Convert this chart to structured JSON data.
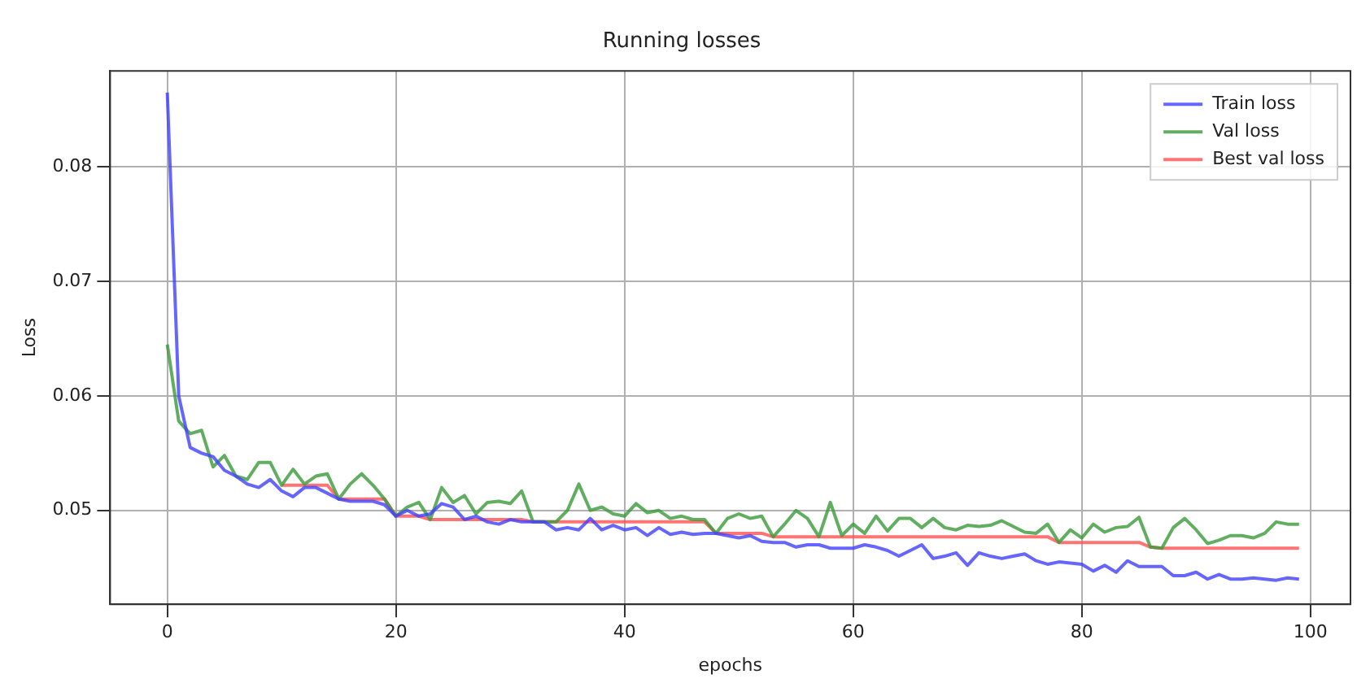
{
  "chart_data": {
    "type": "line",
    "title": "Running losses",
    "xlabel": "epochs",
    "ylabel": "Loss",
    "x": [
      0,
      1,
      2,
      3,
      4,
      5,
      6,
      7,
      8,
      9,
      10,
      11,
      12,
      13,
      14,
      15,
      16,
      17,
      18,
      19,
      20,
      21,
      22,
      23,
      24,
      25,
      26,
      27,
      28,
      29,
      30,
      31,
      32,
      33,
      34,
      35,
      36,
      37,
      38,
      39,
      40,
      41,
      42,
      43,
      44,
      45,
      46,
      47,
      48,
      49,
      50,
      51,
      52,
      53,
      54,
      55,
      56,
      57,
      58,
      59,
      60,
      61,
      62,
      63,
      64,
      65,
      66,
      67,
      68,
      69,
      70,
      71,
      72,
      73,
      74,
      75,
      76,
      77,
      78,
      79,
      80,
      81,
      82,
      83,
      84,
      85,
      86,
      87,
      88,
      89,
      90,
      91,
      92,
      93,
      94,
      95,
      96,
      97,
      98,
      99
    ],
    "series": [
      {
        "name": "Train loss",
        "color": "#4040ff",
        "values": [
          0.0865,
          0.06,
          0.0555,
          0.055,
          0.0547,
          0.0535,
          0.053,
          0.0523,
          0.052,
          0.0527,
          0.0517,
          0.0512,
          0.052,
          0.052,
          0.0515,
          0.051,
          0.0508,
          0.0508,
          0.0508,
          0.0505,
          0.0495,
          0.05,
          0.0495,
          0.0497,
          0.0506,
          0.0503,
          0.0492,
          0.0495,
          0.049,
          0.0488,
          0.0492,
          0.049,
          0.049,
          0.049,
          0.0483,
          0.0485,
          0.0483,
          0.0493,
          0.0483,
          0.0487,
          0.0483,
          0.0485,
          0.0478,
          0.0485,
          0.0479,
          0.0481,
          0.0479,
          0.048,
          0.048,
          0.0478,
          0.0476,
          0.0478,
          0.0473,
          0.0472,
          0.0472,
          0.0468,
          0.047,
          0.047,
          0.0467,
          0.0467,
          0.0467,
          0.047,
          0.0468,
          0.0465,
          0.046,
          0.0465,
          0.047,
          0.0458,
          0.046,
          0.0463,
          0.0452,
          0.0463,
          0.046,
          0.0458,
          0.046,
          0.0462,
          0.0456,
          0.0453,
          0.0455,
          0.0454,
          0.0453,
          0.0447,
          0.0452,
          0.0446,
          0.0456,
          0.0451,
          0.0451,
          0.0451,
          0.0443,
          0.0443,
          0.0446,
          0.044,
          0.0444,
          0.044,
          0.044,
          0.0441,
          0.044,
          0.0439,
          0.0441,
          0.044
        ]
      },
      {
        "name": "Val loss",
        "color": "#3a9a3a",
        "values": [
          0.0645,
          0.0578,
          0.0567,
          0.057,
          0.0538,
          0.0548,
          0.053,
          0.0527,
          0.0542,
          0.0542,
          0.0522,
          0.0536,
          0.0523,
          0.053,
          0.0532,
          0.051,
          0.0523,
          0.0532,
          0.0522,
          0.051,
          0.0495,
          0.0503,
          0.0507,
          0.0492,
          0.052,
          0.0507,
          0.0513,
          0.0497,
          0.0507,
          0.0508,
          0.0506,
          0.0517,
          0.049,
          0.049,
          0.049,
          0.05,
          0.0523,
          0.05,
          0.0503,
          0.0497,
          0.0495,
          0.0506,
          0.0498,
          0.05,
          0.0493,
          0.0495,
          0.0492,
          0.0492,
          0.048,
          0.0493,
          0.0497,
          0.0493,
          0.0495,
          0.0477,
          0.0488,
          0.05,
          0.0493,
          0.0477,
          0.0507,
          0.0478,
          0.0488,
          0.048,
          0.0495,
          0.0482,
          0.0493,
          0.0493,
          0.0485,
          0.0493,
          0.0485,
          0.0483,
          0.0487,
          0.0486,
          0.0487,
          0.0491,
          0.0486,
          0.0481,
          0.048,
          0.0488,
          0.0472,
          0.0483,
          0.0476,
          0.0488,
          0.0481,
          0.0485,
          0.0486,
          0.0494,
          0.0468,
          0.0467,
          0.0485,
          0.0493,
          0.0483,
          0.0471,
          0.0474,
          0.0478,
          0.0478,
          0.0476,
          0.048,
          0.049,
          0.0488,
          0.0488
        ]
      },
      {
        "name": "Best val loss",
        "color": "#ff5050",
        "values": [
          null,
          null,
          null,
          null,
          null,
          null,
          null,
          null,
          null,
          null,
          0.0522,
          0.0522,
          0.0522,
          0.0522,
          0.0522,
          0.051,
          0.051,
          0.051,
          0.051,
          0.051,
          0.0495,
          0.0495,
          0.0495,
          0.0492,
          0.0492,
          0.0492,
          0.0492,
          0.0492,
          0.0492,
          0.0492,
          0.0492,
          0.0492,
          0.049,
          0.049,
          0.049,
          0.049,
          0.049,
          0.049,
          0.049,
          0.049,
          0.049,
          0.049,
          0.049,
          0.049,
          0.049,
          0.049,
          0.049,
          0.049,
          0.048,
          0.048,
          0.048,
          0.048,
          0.048,
          0.0477,
          0.0477,
          0.0477,
          0.0477,
          0.0477,
          0.0477,
          0.0477,
          0.0477,
          0.0477,
          0.0477,
          0.0477,
          0.0477,
          0.0477,
          0.0477,
          0.0477,
          0.0477,
          0.0477,
          0.0477,
          0.0477,
          0.0477,
          0.0477,
          0.0477,
          0.0477,
          0.0477,
          0.0477,
          0.0472,
          0.0472,
          0.0472,
          0.0472,
          0.0472,
          0.0472,
          0.0472,
          0.0472,
          0.0468,
          0.0467,
          0.0467,
          0.0467,
          0.0467,
          0.0467,
          0.0467,
          0.0467,
          0.0467,
          0.0467,
          0.0467,
          0.0467,
          0.0467,
          0.0467
        ]
      }
    ],
    "xlim": [
      -5,
      103.5
    ],
    "xticks": [
      0,
      20,
      40,
      60,
      80,
      100
    ],
    "ylim": [
      0.0418,
      0.0884
    ],
    "yticks": [
      0.05,
      0.06,
      0.07,
      0.08
    ],
    "grid": true,
    "legend": "top right",
    "marker": "none",
    "line_style": "solid"
  }
}
